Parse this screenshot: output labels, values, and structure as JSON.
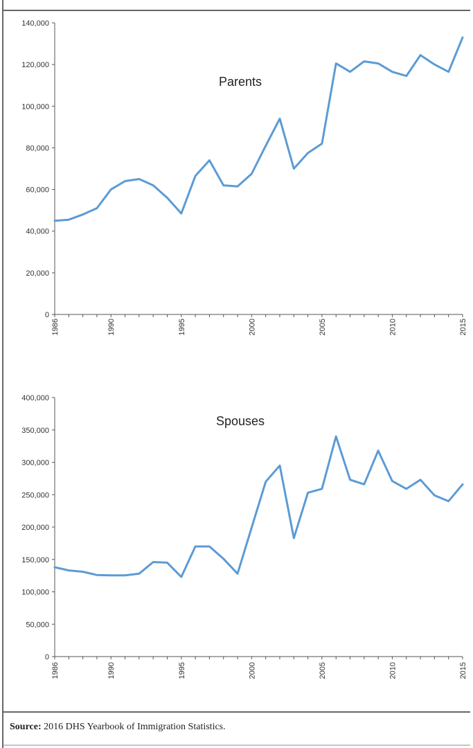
{
  "chart_data": [
    {
      "type": "line",
      "title": "Parents",
      "xlabel": "",
      "ylabel": "",
      "x": [
        1986,
        1987,
        1988,
        1989,
        1990,
        1991,
        1992,
        1993,
        1994,
        1995,
        1996,
        1997,
        1998,
        1999,
        2000,
        2001,
        2002,
        2003,
        2004,
        2005,
        2006,
        2007,
        2008,
        2009,
        2010,
        2011,
        2012,
        2013,
        2014,
        2015
      ],
      "series": [
        {
          "values": [
            45000,
            45500,
            48000,
            51000,
            60000,
            64000,
            65000,
            62000,
            56000,
            48500,
            66500,
            74000,
            62000,
            61500,
            67500,
            81000,
            94000,
            70000,
            77500,
            82000,
            120500,
            116500,
            121500,
            120500,
            116500,
            114500,
            124500,
            120000,
            116500,
            133000
          ],
          "color": "#5b9bd5"
        }
      ],
      "xlim": [
        1986,
        2015
      ],
      "ylim": [
        0,
        140000
      ],
      "yticks": [
        "0",
        "20,000",
        "40,000",
        "60,000",
        "80,000",
        "100,000",
        "120,000",
        "140,000"
      ],
      "xticks": [
        "1986",
        "1990",
        "1995",
        "2000",
        "2005",
        "2010",
        "2015"
      ],
      "grid": false,
      "legend": "none"
    },
    {
      "type": "line",
      "title": "Spouses",
      "xlabel": "",
      "ylabel": "",
      "x": [
        1986,
        1987,
        1988,
        1989,
        1990,
        1991,
        1992,
        1993,
        1994,
        1995,
        1996,
        1997,
        1998,
        1999,
        2000,
        2001,
        2002,
        2003,
        2004,
        2005,
        2006,
        2007,
        2008,
        2009,
        2010,
        2011,
        2012,
        2013,
        2014,
        2015
      ],
      "series": [
        {
          "values": [
            138000,
            133000,
            131000,
            126000,
            125500,
            125500,
            128000,
            146000,
            145000,
            123000,
            170000,
            170000,
            151000,
            128000,
            199000,
            270000,
            295000,
            183000,
            253000,
            259000,
            340000,
            273000,
            266000,
            318000,
            271000,
            259000,
            273000,
            249000,
            240000,
            266000
          ],
          "color": "#5b9bd5"
        }
      ],
      "xlim": [
        1986,
        2015
      ],
      "ylim": [
        0,
        400000
      ],
      "yticks": [
        "0",
        "50,000",
        "100,000",
        "150,000",
        "200,000",
        "250,000",
        "300,000",
        "350,000",
        "400,000"
      ],
      "xticks": [
        "1986",
        "1990",
        "1995",
        "2000",
        "2005",
        "2010",
        "2015"
      ],
      "grid": false,
      "legend": "none"
    }
  ],
  "colors": {
    "line": "#5b9bd5",
    "axis": "#555555",
    "rule": "#666666",
    "text": "#222222"
  },
  "source": {
    "label": "Source:",
    "text": " 2016 DHS Yearbook of Immigration Statistics."
  }
}
